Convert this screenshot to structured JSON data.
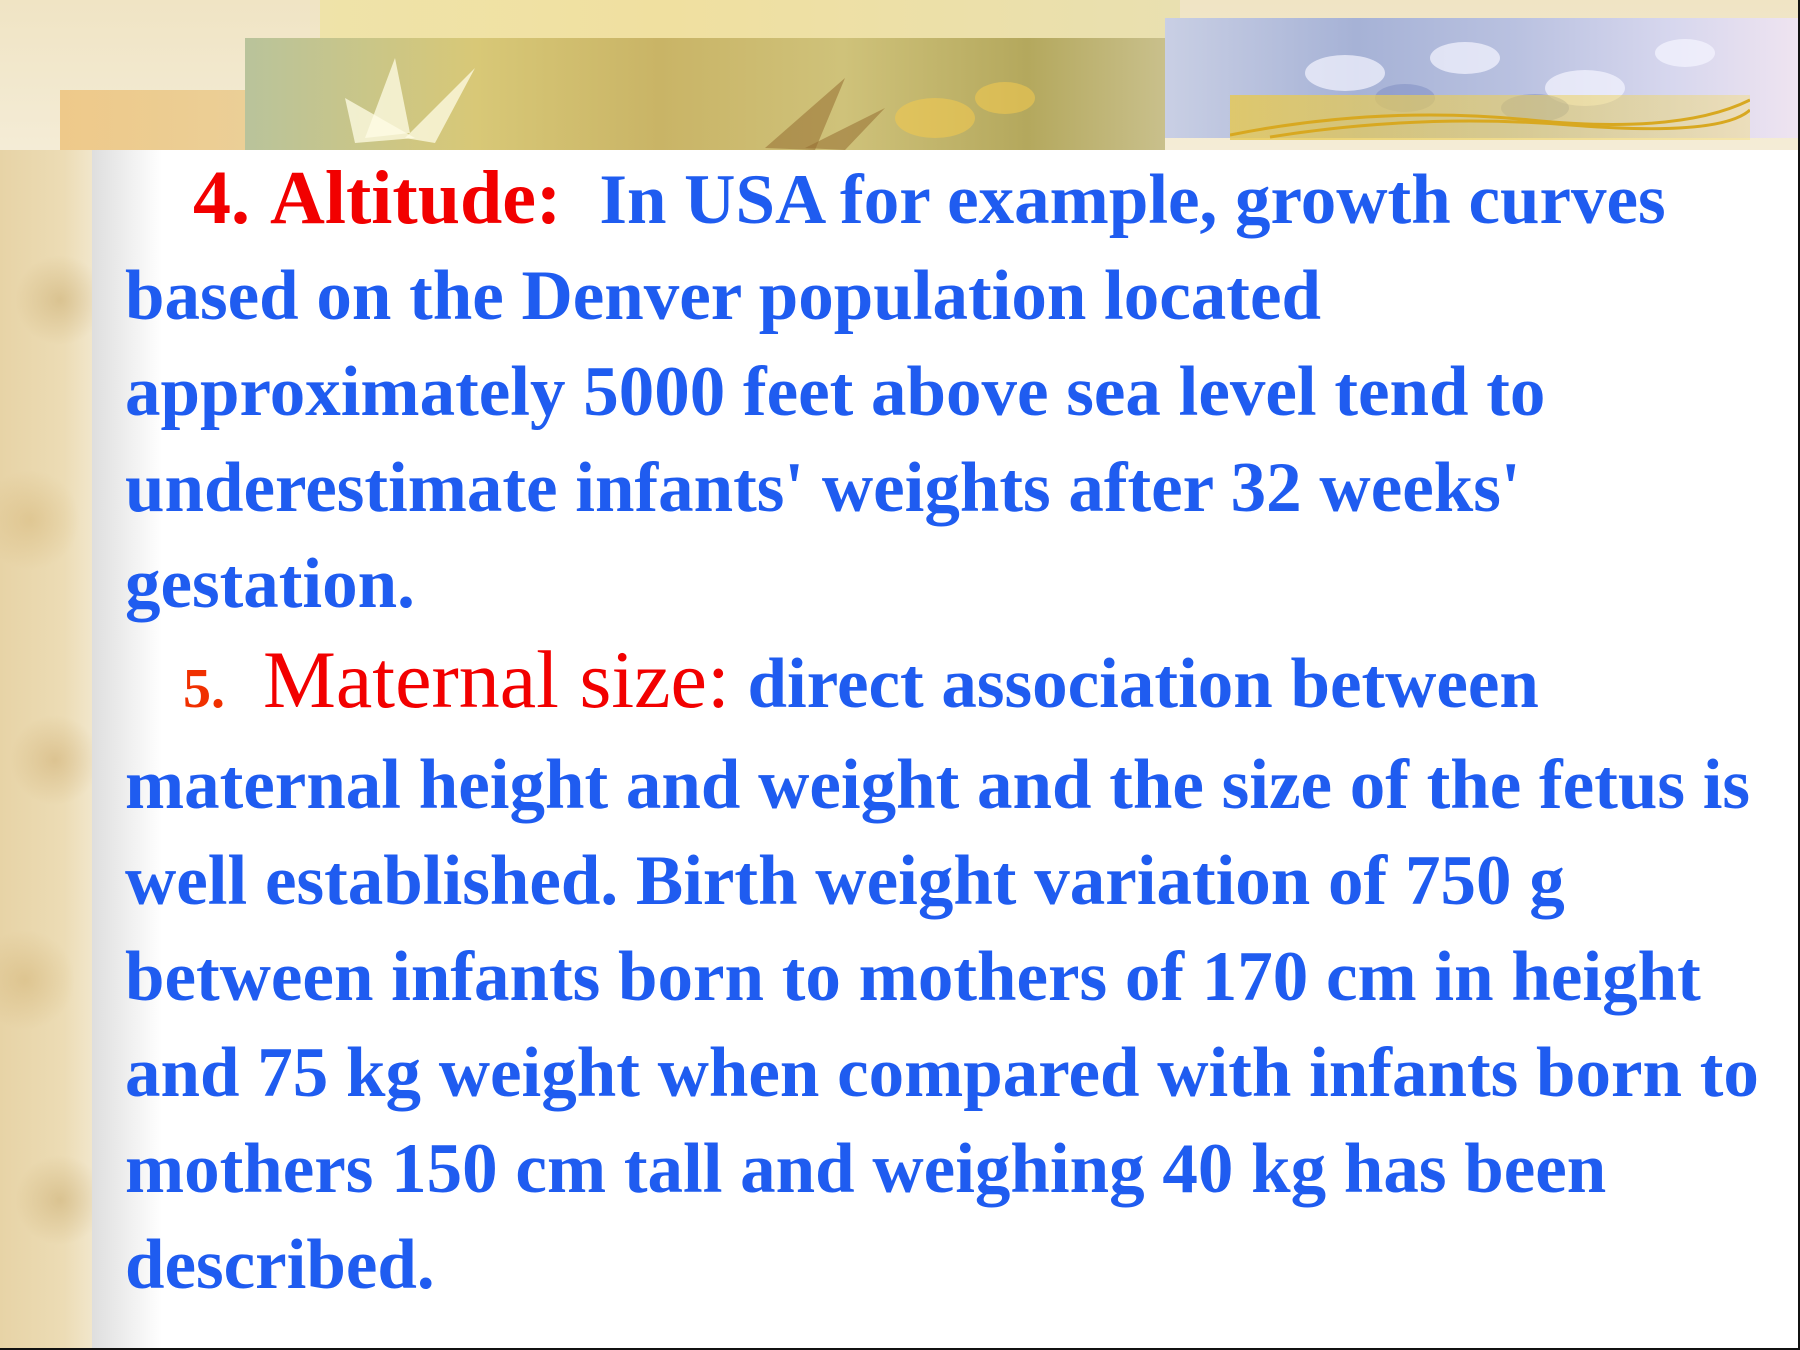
{
  "slide": {
    "item4": {
      "number": "4.",
      "heading": "Altitude:",
      "text": "In USA for example, growth curves based on the Denver population located approximately 5000 feet above sea level tend to underestimate infants' weights after 32 weeks' gestation."
    },
    "item5": {
      "number": "5.",
      "heading": "Maternal size:",
      "text": "direct association between maternal height and weight and the size of the fetus is well established. Birth weight variation of 750 g between infants born to mothers of 170 cm in height and 75 kg weight when compared with infants born to mothers 150 cm tall and weighing 40 kg has been described."
    }
  },
  "colors": {
    "heading": "#f20000",
    "body_text": "#1f5cf0"
  }
}
